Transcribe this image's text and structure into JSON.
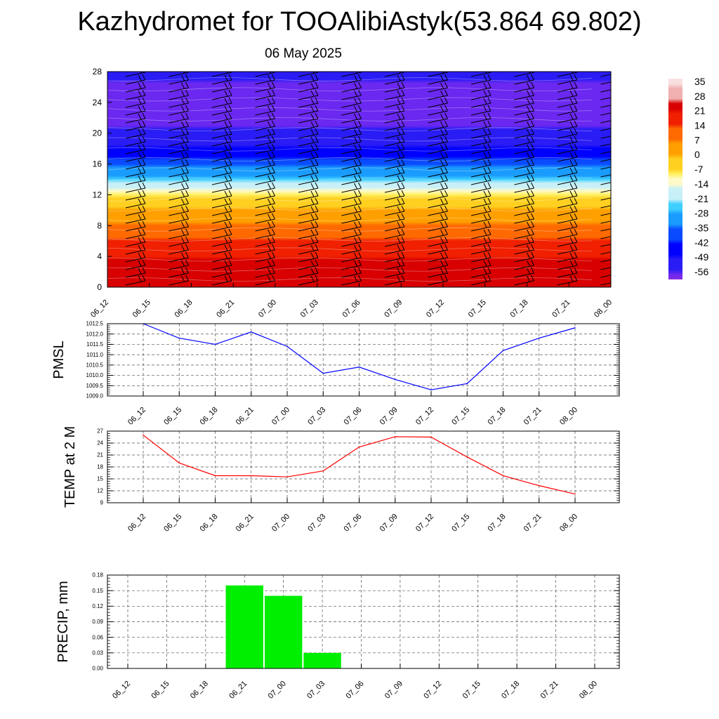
{
  "title": "Kazhydromet for TOOAlibiAstyk(53.864 69.802)",
  "date": "06 May 2025",
  "chart_data": [
    {
      "type": "heatmap",
      "yticks": [
        0,
        4,
        8,
        12,
        16,
        20,
        24,
        28
      ],
      "ylim": [
        0,
        28
      ],
      "xticks": [
        "06_12",
        "06_15",
        "06_18",
        "06_21",
        "07_00",
        "07_03",
        "07_06",
        "07_09",
        "07_12",
        "07_15",
        "07_18",
        "07_21",
        "08_00"
      ],
      "colorbar": {
        "labels": [
          "35",
          "28",
          "21",
          "14",
          "7",
          "0",
          "-7",
          "-14",
          "-21",
          "-28",
          "-35",
          "-42",
          "-49",
          "-56"
        ],
        "range": [
          -60,
          38
        ]
      },
      "field_description_temperature_profile": [
        {
          "level": 0,
          "value": 26
        },
        {
          "level": 3,
          "value": 23
        },
        {
          "level": 6,
          "value": 15
        },
        {
          "level": 9,
          "value": 5
        },
        {
          "level": 12,
          "value": -8
        },
        {
          "level": 14,
          "value": -25
        },
        {
          "level": 16,
          "value": -38
        },
        {
          "level": 18,
          "value": -48
        },
        {
          "level": 20,
          "value": -55
        },
        {
          "level": 23,
          "value": -59
        },
        {
          "level": 28,
          "value": -55
        }
      ]
    },
    {
      "type": "line",
      "ylabel": "PMSL",
      "ylim": [
        1009.0,
        1012.5
      ],
      "yticks": [
        "1012.5",
        "1012.0",
        "1011.5",
        "1011.0",
        "1010.5",
        "1010.0",
        "1009.5",
        "1009.0"
      ],
      "categories": [
        "06_12",
        "06_15",
        "06_18",
        "06_21",
        "07_00",
        "07_03",
        "07_06",
        "07_09",
        "07_12",
        "07_15",
        "07_18",
        "07_21",
        "08_00"
      ],
      "values": [
        1012.5,
        1011.8,
        1011.5,
        1012.1,
        1011.4,
        1010.1,
        1010.4,
        1009.8,
        1009.3,
        1009.6,
        1011.2,
        1011.8,
        1012.3
      ],
      "color": "#0000ff"
    },
    {
      "type": "line",
      "ylabel": "TEMP at 2 M",
      "ylim": [
        9,
        27
      ],
      "yticks": [
        "27",
        "24",
        "21",
        "18",
        "15",
        "12",
        "9"
      ],
      "categories": [
        "06_12",
        "06_15",
        "06_18",
        "06_21",
        "07_00",
        "07_03",
        "07_06",
        "07_09",
        "07_12",
        "07_15",
        "07_18",
        "07_21",
        "08_00"
      ],
      "values": [
        26.0,
        19.0,
        15.8,
        15.8,
        15.5,
        17.0,
        23.0,
        25.6,
        25.5,
        20.5,
        15.8,
        13.3,
        11.2
      ],
      "color": "#ff0000"
    },
    {
      "type": "bar",
      "ylabel": "PRECIP, mm",
      "ylim": [
        0,
        0.18
      ],
      "yticks": [
        "0.18",
        "0.15",
        "0.12",
        "0.09",
        "0.06",
        "0.03",
        "0.00"
      ],
      "categories": [
        "06_12",
        "06_15",
        "06_18",
        "06_21",
        "07_00",
        "07_03",
        "07_06",
        "07_09",
        "07_12",
        "07_15",
        "07_18",
        "07_21",
        "08_00"
      ],
      "values": [
        0,
        0,
        0,
        0.16,
        0.14,
        0.03,
        0,
        0,
        0,
        0,
        0,
        0,
        0
      ],
      "color": "#00ee00"
    }
  ]
}
